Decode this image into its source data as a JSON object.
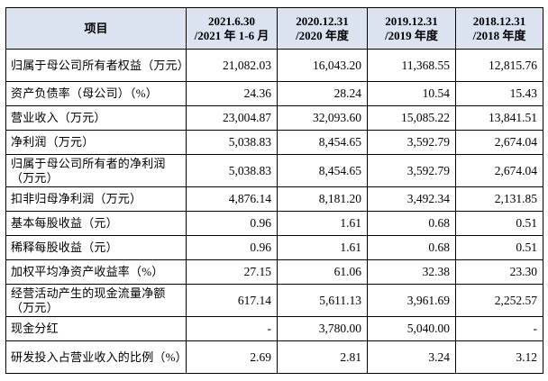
{
  "table": {
    "headers": [
      {
        "lines": [
          "项目"
        ]
      },
      {
        "lines": [
          "2021.6.30",
          "/2021 年 1-6 月"
        ]
      },
      {
        "lines": [
          "2020.12.31",
          "/2020 年度"
        ]
      },
      {
        "lines": [
          "2019.12.31",
          "/2019 年度"
        ]
      },
      {
        "lines": [
          "2018.12.31",
          "/2018 年度"
        ]
      }
    ],
    "rows": [
      {
        "label": "归属于母公司所有者权益（万元）",
        "values": [
          "21,082.03",
          "16,043.20",
          "11,368.55",
          "12,815.76"
        ]
      },
      {
        "label": "资产负债率（母公司）（%）",
        "values": [
          "24.36",
          "28.24",
          "10.54",
          "15.43"
        ]
      },
      {
        "label": "营业收入（万元）",
        "values": [
          "23,004.87",
          "32,093.60",
          "15,085.22",
          "13,841.51"
        ]
      },
      {
        "label": "净利润（万元）",
        "values": [
          "5,038.83",
          "8,454.65",
          "3,592.79",
          "2,674.04"
        ]
      },
      {
        "label": "归属于母公司所有者的净利润（万元）",
        "values": [
          "5,038.83",
          "8,454.65",
          "3,592.79",
          "2,674.04"
        ]
      },
      {
        "label": "扣非归母净利润（万元）",
        "values": [
          "4,876.14",
          "8,181.20",
          "3,492.34",
          "2,131.85"
        ]
      },
      {
        "label": "基本每股收益（元）",
        "values": [
          "0.96",
          "1.61",
          "0.68",
          "0.51"
        ]
      },
      {
        "label": "稀释每股收益（元）",
        "values": [
          "0.96",
          "1.61",
          "0.68",
          "0.51"
        ]
      },
      {
        "label": "加权平均净资产收益率（%）",
        "values": [
          "27.15",
          "61.06",
          "32.38",
          "23.30"
        ]
      },
      {
        "label": "经营活动产生的现金流量净额（万元）",
        "values": [
          "617.14",
          "5,611.13",
          "3,961.69",
          "2,252.57"
        ]
      },
      {
        "label": "现金分红",
        "values": [
          "-",
          "3,780.00",
          "5,040.00",
          "-"
        ]
      },
      {
        "label": "研发投入占营业收入的比例（%）",
        "values": [
          "2.69",
          "2.81",
          "3.24",
          "3.12"
        ]
      }
    ]
  }
}
